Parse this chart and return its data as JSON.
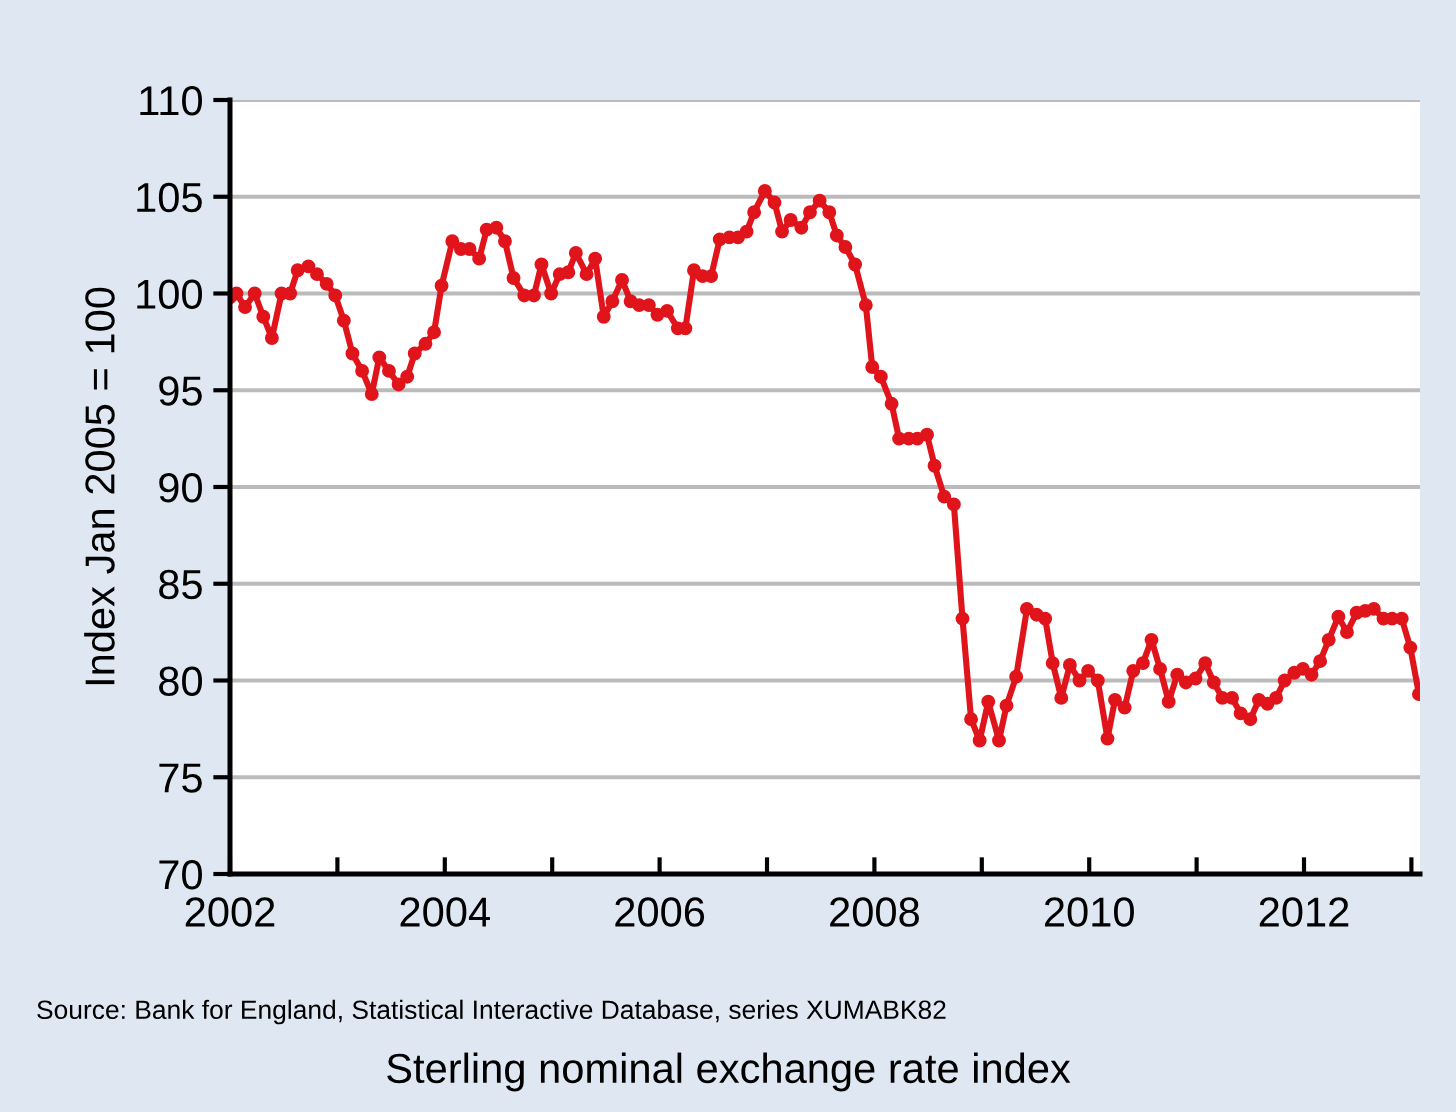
{
  "chart_data": {
    "type": "line",
    "title": "Sterling nominal exchange rate index",
    "ylabel": "Index Jan 2005 = 100",
    "annotations": [
      "Source: Bank for England, Statistical Interactive Database, series XUMABK82"
    ],
    "x": [
      2002.0,
      2002.06,
      2002.14,
      2002.23,
      2002.31,
      2002.39,
      2002.48,
      2002.56,
      2002.63,
      2002.73,
      2002.81,
      2002.9,
      2002.98,
      2003.06,
      2003.14,
      2003.23,
      2003.32,
      2003.39,
      2003.48,
      2003.57,
      2003.65,
      2003.72,
      2003.82,
      2003.9,
      2003.97,
      2004.07,
      2004.15,
      2004.23,
      2004.32,
      2004.39,
      2004.48,
      2004.56,
      2004.64,
      2004.74,
      2004.83,
      2004.9,
      2004.99,
      2005.07,
      2005.15,
      2005.22,
      2005.32,
      2005.4,
      2005.48,
      2005.56,
      2005.65,
      2005.73,
      2005.81,
      2005.9,
      2005.98,
      2006.07,
      2006.17,
      2006.24,
      2006.32,
      2006.4,
      2006.48,
      2006.56,
      2006.65,
      2006.73,
      2006.81,
      2006.88,
      2006.98,
      2007.07,
      2007.14,
      2007.22,
      2007.32,
      2007.4,
      2007.49,
      2007.58,
      2007.65,
      2007.73,
      2007.82,
      2007.92,
      2007.98,
      2008.06,
      2008.16,
      2008.23,
      2008.32,
      2008.4,
      2008.49,
      2008.56,
      2008.65,
      2008.74,
      2008.82,
      2008.9,
      2008.98,
      2009.06,
      2009.16,
      2009.23,
      2009.32,
      2009.42,
      2009.51,
      2009.59,
      2009.66,
      2009.74,
      2009.82,
      2009.91,
      2009.99,
      2010.08,
      2010.17,
      2010.24,
      2010.33,
      2010.41,
      2010.5,
      2010.58,
      2010.66,
      2010.74,
      2010.82,
      2010.9,
      2010.99,
      2011.08,
      2011.16,
      2011.24,
      2011.33,
      2011.41,
      2011.5,
      2011.58,
      2011.66,
      2011.74,
      2011.82,
      2011.91,
      2011.99,
      2012.07,
      2012.15,
      2012.23,
      2012.32,
      2012.4,
      2012.49,
      2012.57,
      2012.65,
      2012.74,
      2012.82,
      2012.91,
      2012.99,
      2013.07
    ],
    "series": [
      {
        "color": "#e0141b",
        "values": [
          99.8,
          100.0,
          99.3,
          100.0,
          98.8,
          97.7,
          100.0,
          100.0,
          101.2,
          101.4,
          101.0,
          100.5,
          99.9,
          98.6,
          96.9,
          96.0,
          94.8,
          96.7,
          96.0,
          95.3,
          95.7,
          96.9,
          97.4,
          98.0,
          100.4,
          102.7,
          102.3,
          102.3,
          101.8,
          103.3,
          103.4,
          102.7,
          100.8,
          99.9,
          99.9,
          101.5,
          100.0,
          101.0,
          101.1,
          102.1,
          101.0,
          101.8,
          98.8,
          99.6,
          100.7,
          99.6,
          99.4,
          99.4,
          98.9,
          99.1,
          98.2,
          98.2,
          101.2,
          100.9,
          100.9,
          102.8,
          102.9,
          102.9,
          103.2,
          104.2,
          105.3,
          104.7,
          103.2,
          103.8,
          103.4,
          104.2,
          104.8,
          104.2,
          103.0,
          102.4,
          101.5,
          99.4,
          96.2,
          95.7,
          94.3,
          92.5,
          92.5,
          92.5,
          92.7,
          91.1,
          89.5,
          89.1,
          83.2,
          78.0,
          76.9,
          78.9,
          76.9,
          78.7,
          80.2,
          83.7,
          83.4,
          83.2,
          80.9,
          79.1,
          80.8,
          80.0,
          80.5,
          80.0,
          77.0,
          79.0,
          78.6,
          80.5,
          80.9,
          82.1,
          80.6,
          78.9,
          80.3,
          79.9,
          80.1,
          80.9,
          79.9,
          79.1,
          79.1,
          78.3,
          78.0,
          79.0,
          78.8,
          79.1,
          80.0,
          80.4,
          80.6,
          80.3,
          81.0,
          82.1,
          83.3,
          82.5,
          83.5,
          83.6,
          83.7,
          83.2,
          83.2,
          83.2,
          81.7,
          79.3
        ]
      }
    ],
    "xlim": [
      2002,
      2013.08
    ],
    "xticks": [
      2002,
      {
        "value": 2003,
        "label": null
      },
      2004,
      {
        "value": 2005,
        "label": null
      },
      2006,
      {
        "value": 2007,
        "label": null
      },
      2008,
      {
        "value": 2009,
        "label": null
      },
      2010,
      {
        "value": 2011,
        "label": null
      },
      2012,
      {
        "value": 2013,
        "label": null
      }
    ],
    "ylim": [
      70,
      110
    ],
    "yticks": [
      70,
      75,
      80,
      85,
      90,
      95,
      100,
      105,
      110
    ],
    "grid": "y",
    "marker": "circle",
    "line_style": "solid",
    "legend": false
  }
}
